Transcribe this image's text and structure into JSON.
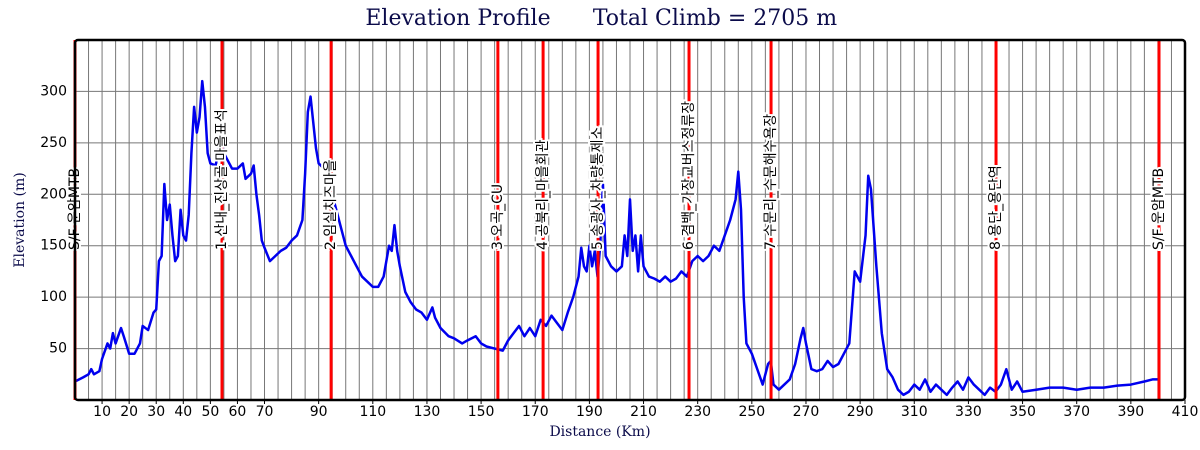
{
  "chart_data": {
    "type": "line",
    "title": "Elevation Profile",
    "subtitle": "Total Climb = 2705 m",
    "xlabel": "Distance (Km)",
    "ylabel": "Elevation (m)",
    "color": "#0000ee",
    "marker_color": "#ff0000",
    "grid": true,
    "xlim": [
      0,
      410
    ],
    "ylim": [
      0,
      350
    ],
    "xticks": [
      10,
      20,
      30,
      40,
      50,
      60,
      70,
      90,
      110,
      130,
      150,
      170,
      190,
      210,
      230,
      250,
      270,
      290,
      310,
      330,
      350,
      370,
      390,
      410
    ],
    "x_minor_ticks": [
      0,
      5,
      10,
      15,
      20,
      25,
      30,
      35,
      40,
      45,
      50,
      55,
      60,
      65,
      70,
      75,
      80,
      85,
      90,
      95,
      100,
      105,
      110,
      115,
      120,
      125,
      130,
      135,
      140,
      145,
      150,
      155,
      160,
      165,
      170,
      175,
      180,
      185,
      190,
      195,
      200,
      205,
      210,
      215,
      220,
      225,
      230,
      235,
      240,
      245,
      250,
      255,
      260,
      265,
      270,
      275,
      280,
      285,
      290,
      295,
      300,
      305,
      310,
      315,
      320,
      325,
      330,
      335,
      340,
      345,
      350,
      355,
      360,
      365,
      370,
      375,
      380,
      385,
      390,
      395,
      400,
      405,
      410
    ],
    "yticks": [
      50,
      100,
      150,
      200,
      250,
      300
    ],
    "markers": [
      {
        "x": 0,
        "label": "S/F 운암MTB"
      },
      {
        "x": 54.3,
        "label": "1 산내_진상골 마을표석"
      },
      {
        "x": 94.6,
        "label": "2 임실치즈마을"
      },
      {
        "x": 156.2,
        "label": "3 오곡_CU"
      },
      {
        "x": 172.9,
        "label": "4 공북리_마을회관"
      },
      {
        "x": 193.2,
        "label": "5 송광사_차량통제소"
      },
      {
        "x": 226.8,
        "label": "6 겸백_가장교버스정류장"
      },
      {
        "x": 257.1,
        "label": "7 수문리_수문해수욕장"
      },
      {
        "x": 340.2,
        "label": "8 용단_용단역"
      },
      {
        "x": 400.4,
        "label": "S/F 운암MTB"
      }
    ],
    "x": [
      0,
      3,
      5,
      6,
      7,
      9,
      10,
      12,
      13,
      14,
      15,
      17,
      18,
      20,
      22,
      24,
      25,
      27,
      29,
      30,
      31,
      32,
      33,
      34,
      35,
      36,
      37,
      38,
      39,
      40,
      41,
      42,
      43,
      44,
      45,
      46,
      47,
      48,
      49,
      50,
      52,
      53,
      54,
      55,
      56,
      58,
      60,
      62,
      63,
      65,
      66,
      67,
      68,
      69,
      70,
      72,
      74,
      76,
      78,
      80,
      82,
      84,
      85,
      86,
      87,
      88,
      89,
      90,
      92,
      93,
      94,
      96,
      98,
      100,
      102,
      104,
      106,
      108,
      110,
      112,
      114,
      116,
      117,
      118,
      119,
      120,
      122,
      124,
      126,
      128,
      130,
      132,
      133,
      135,
      138,
      140,
      143,
      145,
      148,
      150,
      152,
      155,
      158,
      160,
      162,
      164,
      166,
      168,
      170,
      172,
      174,
      176,
      178,
      180,
      182,
      184,
      186,
      187,
      188,
      189,
      190,
      191,
      192,
      193,
      194,
      195,
      196,
      198,
      200,
      202,
      203,
      204,
      205,
      206,
      207,
      208,
      209,
      210,
      212,
      214,
      216,
      218,
      220,
      222,
      224,
      226,
      228,
      230,
      232,
      234,
      236,
      238,
      240,
      242,
      244,
      245,
      246,
      247,
      248,
      250,
      252,
      254,
      256,
      257,
      258,
      260,
      262,
      264,
      266,
      268,
      269,
      270,
      272,
      274,
      276,
      278,
      280,
      282,
      284,
      286,
      288,
      290,
      292,
      293,
      294,
      296,
      298,
      300,
      302,
      304,
      306,
      308,
      310,
      312,
      314,
      316,
      318,
      320,
      322,
      324,
      326,
      328,
      330,
      332,
      334,
      336,
      338,
      340,
      342,
      344,
      346,
      348,
      350,
      355,
      360,
      365,
      370,
      375,
      380,
      385,
      390,
      395,
      398,
      400
    ],
    "values": [
      18,
      22,
      25,
      30,
      25,
      28,
      40,
      55,
      50,
      65,
      55,
      70,
      62,
      45,
      45,
      55,
      72,
      68,
      85,
      88,
      135,
      140,
      210,
      175,
      190,
      160,
      135,
      140,
      185,
      160,
      155,
      180,
      240,
      285,
      260,
      275,
      310,
      285,
      240,
      230,
      228,
      245,
      255,
      240,
      235,
      225,
      225,
      230,
      215,
      220,
      228,
      200,
      180,
      155,
      148,
      135,
      140,
      145,
      148,
      155,
      160,
      175,
      220,
      280,
      295,
      270,
      245,
      230,
      225,
      230,
      210,
      190,
      170,
      150,
      140,
      130,
      120,
      115,
      110,
      110,
      120,
      150,
      145,
      170,
      145,
      130,
      105,
      95,
      88,
      85,
      78,
      90,
      80,
      70,
      62,
      60,
      55,
      58,
      62,
      55,
      52,
      50,
      48,
      58,
      65,
      72,
      62,
      70,
      62,
      78,
      72,
      82,
      75,
      68,
      85,
      100,
      120,
      148,
      130,
      125,
      150,
      130,
      145,
      120,
      150,
      210,
      140,
      130,
      125,
      130,
      160,
      140,
      195,
      145,
      160,
      125,
      160,
      130,
      120,
      118,
      115,
      120,
      115,
      118,
      125,
      120,
      135,
      140,
      135,
      140,
      150,
      145,
      160,
      175,
      195,
      222,
      185,
      100,
      55,
      45,
      30,
      15,
      35,
      38,
      15,
      10,
      15,
      20,
      35,
      60,
      70,
      55,
      30,
      28,
      30,
      38,
      32,
      35,
      45,
      55,
      125,
      115,
      160,
      218,
      205,
      130,
      65,
      30,
      22,
      10,
      5,
      8,
      15,
      10,
      20,
      8,
      15,
      10,
      5,
      12,
      18,
      10,
      22,
      15,
      10,
      5,
      12,
      8,
      15,
      30,
      10,
      18,
      8,
      10,
      12,
      12,
      10,
      12,
      12,
      14,
      15,
      18,
      20,
      20
    ]
  }
}
